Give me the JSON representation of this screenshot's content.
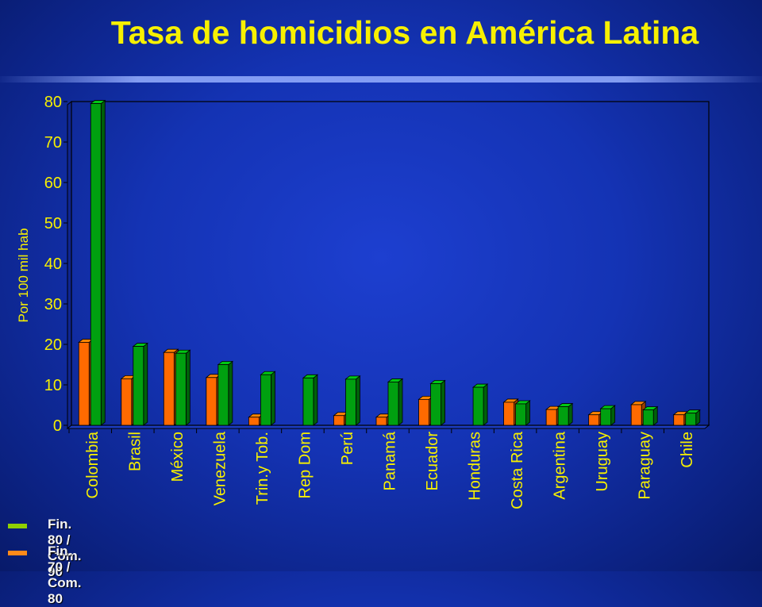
{
  "title": "Tasa de homicidios en América Latina",
  "colors": {
    "title": "#f7f000",
    "axis_text": "#f7f000",
    "series_80": "#ff6a00",
    "series_90": "#00a010",
    "legend_90_swatch": "#8fd000",
    "legend_80_swatch": "#ff8a1a"
  },
  "chart_data": {
    "type": "bar",
    "title": "Tasa de homicidios en América Latina",
    "xlabel": "",
    "ylabel": "Por 100 mil hab",
    "ylim": [
      0,
      80
    ],
    "yticks": [
      0,
      10,
      20,
      30,
      40,
      50,
      60,
      70,
      80
    ],
    "categories": [
      "Colombia",
      "Brasil",
      "México",
      "Venezuela",
      "Trin.y Tob.",
      "Rep Dom",
      "Perú",
      "Panamá",
      "Ecuador",
      "Honduras",
      "Costa Rica",
      "Argentina",
      "Uruguay",
      "Paraguay",
      "Chile"
    ],
    "series": [
      {
        "name": "Fin. 70 / Com. 80",
        "color": "#ff6a00",
        "values": [
          20.5,
          11.5,
          18,
          11.8,
          2,
          null,
          2.4,
          2,
          6.4,
          null,
          5.7,
          3.9,
          2.6,
          5.1,
          2.6
        ]
      },
      {
        "name": "Fin. 80 / Com. 90",
        "color": "#00a010",
        "values": [
          79.5,
          19.5,
          17.8,
          15,
          12.5,
          11.7,
          11.4,
          10.7,
          10.3,
          9.4,
          5.3,
          4.6,
          4.1,
          3.8,
          3
        ]
      }
    ],
    "legend": "bottom-left",
    "grid": false
  },
  "legend": [
    {
      "label": "Fin. 80 / Com. 90",
      "color": "#8fd000"
    },
    {
      "label": "Fin. 70 / Com. 80",
      "color": "#ff8a1a"
    }
  ]
}
